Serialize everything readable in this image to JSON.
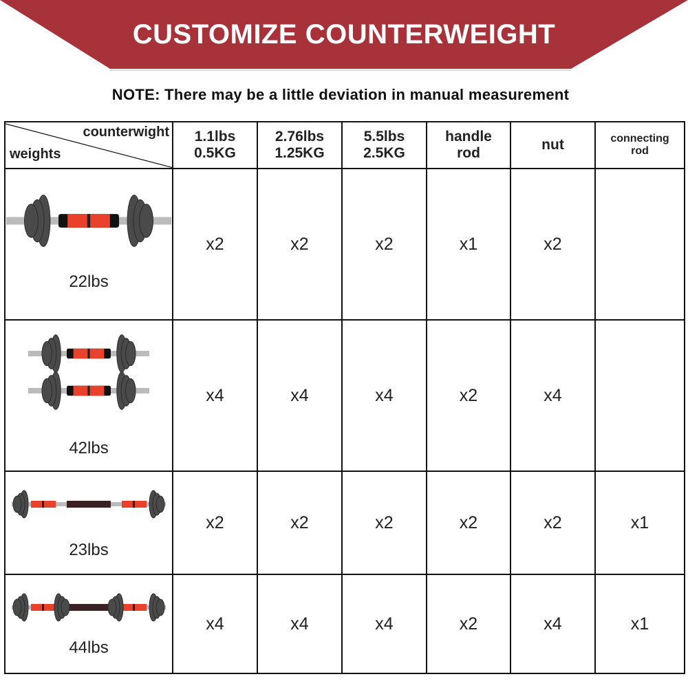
{
  "banner": {
    "title": "CUSTOMIZE COUNTERWEIGHT",
    "color": "#a8323a"
  },
  "note": "NOTE: There may be a little deviation in manual measurement",
  "table": {
    "corner": {
      "top": "counterwight",
      "bottom": "weights"
    },
    "columns": [
      {
        "line1": "1.1lbs",
        "line2": "0.5KG"
      },
      {
        "line1": "2.76lbs",
        "line2": "1.25KG"
      },
      {
        "line1": "5.5lbs",
        "line2": "2.5KG"
      },
      {
        "line1": "handle",
        "line2": "rod"
      },
      {
        "line1": "nut",
        "line2": ""
      },
      {
        "line1": "connecting",
        "line2": "rod"
      }
    ],
    "rows": [
      {
        "weight": "22lbs",
        "image": "single-dumbbell",
        "values": [
          "x2",
          "x2",
          "x2",
          "x1",
          "x2",
          ""
        ]
      },
      {
        "weight": "42lbs",
        "image": "pair-of-dumbbells",
        "values": [
          "x4",
          "x4",
          "x4",
          "x2",
          "x4",
          ""
        ]
      },
      {
        "weight": "23lbs",
        "image": "barbell",
        "values": [
          "x2",
          "x2",
          "x2",
          "x2",
          "x2",
          "x1"
        ]
      },
      {
        "weight": "44lbs",
        "image": "barbell-full",
        "values": [
          "x4",
          "x4",
          "x4",
          "x2",
          "x4",
          "x1"
        ]
      }
    ]
  },
  "colors": {
    "plate": "#4a4a4a",
    "grip": "#e8412c"
  }
}
